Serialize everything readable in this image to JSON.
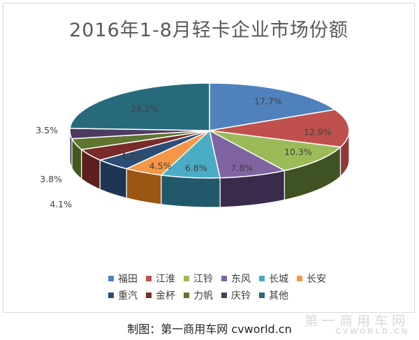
{
  "chart_data": {
    "type": "pie",
    "title": "2016年1-8月轻卡企业市场份额",
    "unit": "%",
    "slices": [
      {
        "name": "福田",
        "value": 17.7,
        "label": "17.7%",
        "color": "#4f81bd",
        "side": "#38608f"
      },
      {
        "name": "江淮",
        "value": 12.9,
        "label": "12.9%",
        "color": "#c0504d",
        "side": "#8e3936"
      },
      {
        "name": "江铃",
        "value": 10.3,
        "label": "10.3%",
        "color": "#9bbb59",
        "side": "#3f5223"
      },
      {
        "name": "东风",
        "value": 7.8,
        "label": "7.8%",
        "color": "#8064a2",
        "side": "#3a2b4d"
      },
      {
        "name": "长城",
        "value": 6.8,
        "label": "6.8%",
        "color": "#4bacc6",
        "side": "#21596a"
      },
      {
        "name": "长安",
        "value": 4.5,
        "label": "4.5%",
        "color": "#f79646",
        "side": "#9d5514"
      },
      {
        "name": "重汽",
        "value": 4.2,
        "label": "4.2%",
        "color": "#2c4d75",
        "side": "#1e3554"
      },
      {
        "name": "金杯",
        "value": 4.1,
        "label": "4.1%",
        "color": "#772c2a",
        "side": "#5b1f1e"
      },
      {
        "name": "力帆",
        "value": 3.8,
        "label": "3.8%",
        "color": "#5f7530",
        "side": "#46581f"
      },
      {
        "name": "庆铃",
        "value": 3.5,
        "label": "3.5%",
        "color": "#4d3b62",
        "side": "#342842"
      },
      {
        "name": "其他",
        "value": 24.2,
        "label": "24.2%",
        "color": "#276a7c",
        "side": "#1a4d5b"
      }
    ],
    "legend_position": "bottom",
    "legend_rows": [
      [
        "福田",
        "江淮",
        "江铃",
        "东风",
        "长城",
        "长安"
      ],
      [
        "重汽",
        "金杯",
        "力帆",
        "庆铃",
        "其他"
      ]
    ]
  },
  "footer": {
    "credit": "制图：第一商用车网  cvworld.cn",
    "watermark_cn": "第一商用车网",
    "watermark_en": "CVWORLD.CN"
  }
}
